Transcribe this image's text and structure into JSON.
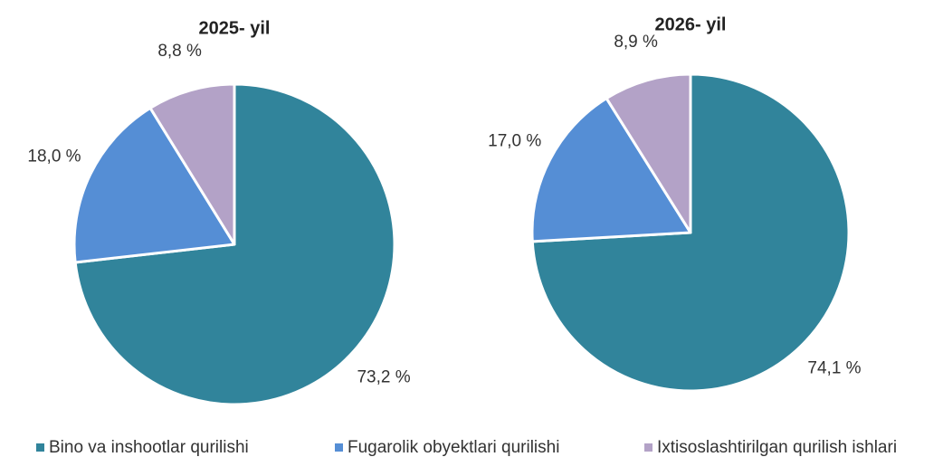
{
  "chart_data": [
    {
      "type": "pie",
      "title": "2025- yil",
      "values": [
        73.2,
        18.0,
        8.8
      ],
      "value_labels": [
        "73,2 %",
        "18,0 %",
        "8,8 %"
      ]
    },
    {
      "type": "pie",
      "title": "2026- yil",
      "values": [
        74.1,
        17.0,
        8.9
      ],
      "value_labels": [
        "74,1 %",
        "17,0 %",
        "8,9 %"
      ]
    }
  ],
  "legend": {
    "items": [
      {
        "name": "Bino va inshootlar qurilishi",
        "color": "#31849b"
      },
      {
        "name": "Fugarolik obyektlari qurilishi",
        "color": "#558ed5"
      },
      {
        "name": "Ixtisoslashtirilgan qurilish ishlari",
        "color": "#b3a2c7"
      }
    ]
  }
}
